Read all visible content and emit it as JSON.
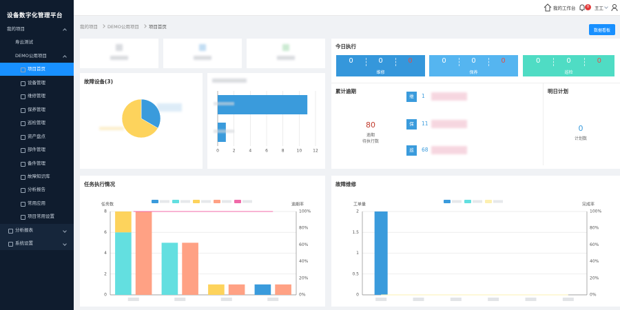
{
  "sidebar": {
    "title": "设备数字化管理平台",
    "group": "我的项目",
    "projects": [
      "寿云测试",
      "DEMO公用项目"
    ],
    "project_menu": [
      "项目首页",
      "设备管理",
      "维修管理",
      "保养管理",
      "巡检管理",
      "资产盘点",
      "部件管理",
      "备件管理",
      "故障知识库",
      "分析报告",
      "常用应用",
      "项目常用设置"
    ],
    "bottom_menu": [
      "分析报表",
      "系统设置"
    ]
  },
  "topbar": {
    "workspace": "我的工作台",
    "badge": "0",
    "user": "王工"
  },
  "breadcrumb": {
    "items": [
      "我的项目",
      "DEMO公用项目",
      "项目首页"
    ],
    "button": "数据看板"
  },
  "today": {
    "title": "今日执行",
    "boxes": [
      {
        "label": "维修",
        "values": [
          0,
          0,
          0
        ],
        "color": "#3597db"
      },
      {
        "label": "保养",
        "values": [
          0,
          0,
          0
        ],
        "color": "#55b5f0"
      },
      {
        "label": "巡检",
        "values": [
          0,
          0,
          0
        ],
        "color": "#4fdcc4"
      }
    ]
  },
  "overdue": {
    "title": "累计逾期",
    "total": 80,
    "caption": [
      "逾期",
      "待执行数"
    ],
    "items": [
      {
        "tag": "维",
        "value": 1
      },
      {
        "tag": "保",
        "value": 11
      },
      {
        "tag": "巡",
        "value": 68
      }
    ]
  },
  "tomorrow": {
    "title": "明日计划",
    "value": 0,
    "caption": "计划数"
  },
  "chart_data": [
    {
      "type": "pie",
      "title": "故障设备(3)",
      "values": [
        1,
        2
      ],
      "colors": [
        "#3a9bdc",
        "#fdd35c"
      ]
    },
    {
      "type": "hbar",
      "categories": [
        null,
        null
      ],
      "values": [
        11,
        1
      ],
      "color": "#3a9bdc",
      "xlim": [
        0,
        12
      ],
      "xticks": [
        0,
        2,
        4,
        6,
        8,
        10,
        12
      ],
      "grid": true
    },
    {
      "type": "bar",
      "title": "任务执行情况",
      "categories": [
        null,
        null,
        null,
        null
      ],
      "ylabel": "任务数",
      "y2label": "逾期率",
      "ylim": [
        0,
        8
      ],
      "yticks": [
        0,
        2,
        4,
        6,
        8
      ],
      "y2lim": [
        0,
        100
      ],
      "y2ticks": [
        {
          "value": 0,
          "label": "0%"
        },
        {
          "value": 20,
          "label": "20%"
        },
        {
          "value": 40,
          "label": "40%"
        },
        {
          "value": 60,
          "label": "60%"
        },
        {
          "value": 80,
          "label": "80%"
        },
        {
          "value": 100,
          "label": "100%"
        }
      ],
      "grid": true,
      "series": [
        {
          "color": "#3a9bdc",
          "values": [
            0,
            0,
            0,
            1
          ],
          "group": 0
        },
        {
          "color": "#63dfe0",
          "values": [
            6,
            5,
            0,
            0
          ],
          "group": 0
        },
        {
          "color": "#fdd35c",
          "values": [
            2,
            0,
            1,
            0
          ],
          "group": 0
        },
        {
          "color": "#ffa184",
          "values": [
            8,
            5,
            1,
            1
          ],
          "group": 1
        },
        {
          "color": "#f06aa8",
          "values": [
            100,
            100,
            100,
            100
          ],
          "axis": "y2",
          "type": "line"
        }
      ]
    },
    {
      "type": "bar",
      "title": "故障维修",
      "categories": [
        null,
        null,
        null,
        null,
        null,
        null
      ],
      "ylabel": "工单量",
      "y2label": "完成率",
      "ylim": [
        0,
        2
      ],
      "yticks": [
        0,
        0.5,
        1,
        1.5,
        2
      ],
      "y2lim": [
        0,
        100
      ],
      "y2ticks": [
        {
          "value": 0,
          "label": "0%"
        },
        {
          "value": 20,
          "label": "20%"
        },
        {
          "value": 40,
          "label": "40%"
        },
        {
          "value": 60,
          "label": "60%"
        },
        {
          "value": 80,
          "label": "80%"
        },
        {
          "value": 100,
          "label": "100%"
        }
      ],
      "grid": true,
      "series": [
        {
          "color": "#3a9bdc",
          "values": [
            2,
            0,
            0,
            0,
            0,
            0
          ],
          "group": 0
        },
        {
          "color": "#63dfe0",
          "values": [
            0,
            0,
            0,
            0,
            0,
            0
          ],
          "group": 0
        },
        {
          "color": "#fdf0b0",
          "values": [
            0,
            0,
            0,
            0,
            0,
            0
          ],
          "axis": "y2",
          "type": "line"
        }
      ]
    }
  ]
}
